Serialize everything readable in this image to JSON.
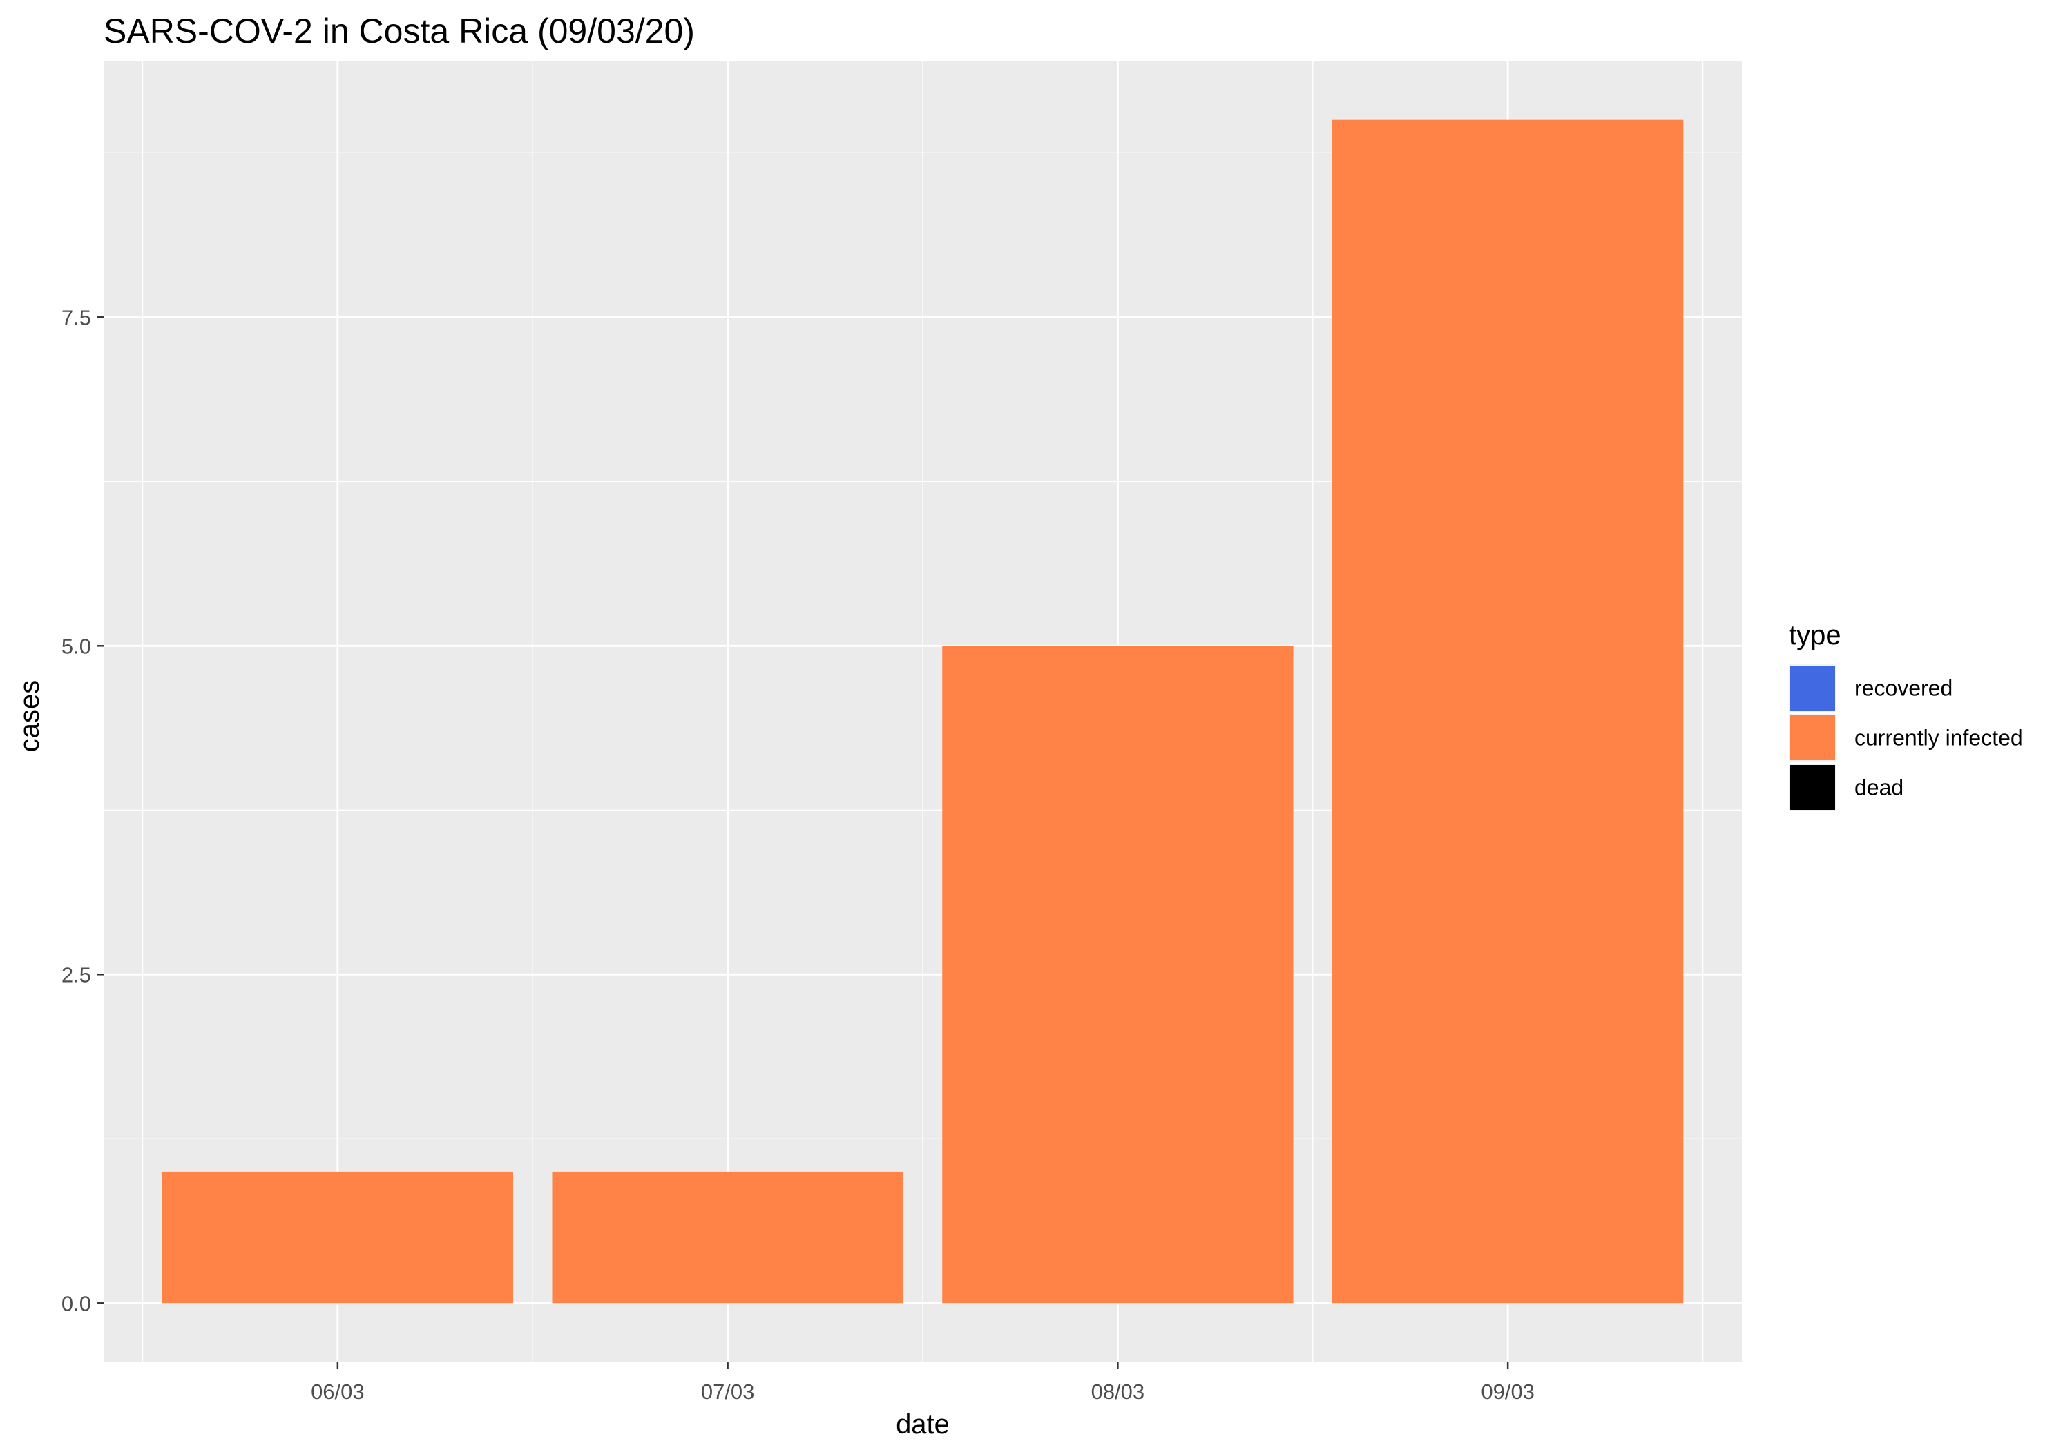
{
  "chart_data": {
    "type": "bar",
    "title": "SARS-COV-2 in Costa Rica (09/03/20)",
    "xlabel": "date",
    "ylabel": "cases",
    "categories": [
      "06/03",
      "07/03",
      "08/03",
      "09/03"
    ],
    "series": [
      {
        "name": "recovered",
        "color": "#4169E1",
        "values": [
          0,
          0,
          0,
          0
        ]
      },
      {
        "name": "currently infected",
        "color": "#FF8247",
        "values": [
          1,
          1,
          5,
          9
        ]
      },
      {
        "name": "dead",
        "color": "#000000",
        "values": [
          0,
          0,
          0,
          0
        ]
      }
    ],
    "yticks": [
      0.0,
      2.5,
      5.0,
      7.5
    ],
    "ytick_labels": [
      "0.0",
      "2.5",
      "5.0",
      "7.5"
    ],
    "ylim": [
      -0.45,
      9.45
    ],
    "grid": true,
    "legend": {
      "title": "type",
      "position": "right"
    },
    "panel_background": "#EBEBEB",
    "grid_color": "#FFFFFF"
  }
}
